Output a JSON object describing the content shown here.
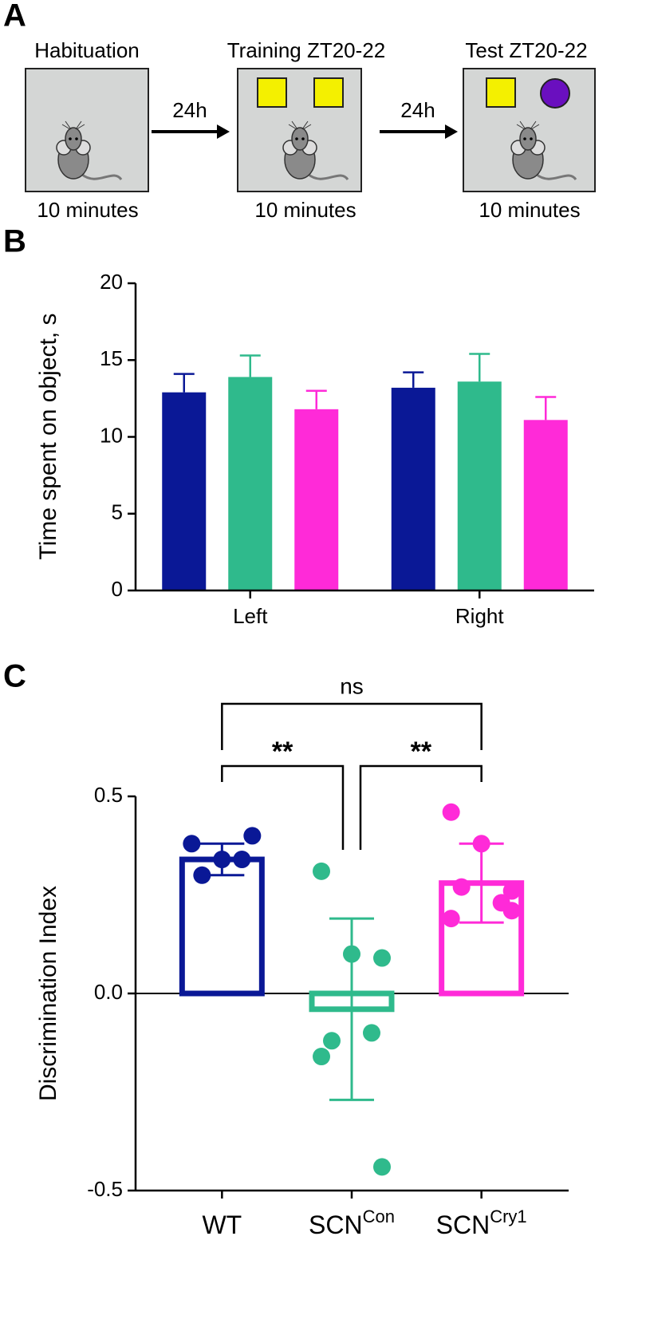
{
  "panel_a": {
    "label": "A",
    "stages": [
      {
        "title": "Habituation",
        "duration": "10 minutes"
      },
      {
        "title": "Training ZT20-22",
        "duration": "10 minutes"
      },
      {
        "title": "Test ZT20-22",
        "duration": "10 minutes"
      }
    ],
    "arrows": [
      "24h",
      "24h"
    ]
  },
  "chart_data": [
    {
      "type": "bar",
      "panel_label": "B",
      "y_label": "Time spent on object, s",
      "categories": [
        "Left",
        "Right"
      ],
      "series": [
        {
          "color": "#0a1896",
          "values": [
            12.9,
            13.2
          ],
          "errors": [
            1.2,
            1.0
          ]
        },
        {
          "color": "#2fba8c",
          "values": [
            13.9,
            13.6
          ],
          "errors": [
            1.4,
            1.8
          ]
        },
        {
          "color": "#ff2ad8",
          "values": [
            11.8,
            11.1
          ],
          "errors": [
            1.2,
            1.5
          ]
        }
      ],
      "ylim": [
        0,
        20
      ],
      "yticks": [
        0,
        5,
        10,
        15,
        20
      ]
    },
    {
      "type": "dotbar",
      "panel_label": "C",
      "y_label": "Discrimination Index",
      "categories": [
        "WT",
        "SCN",
        "SCN"
      ],
      "category_superscripts": [
        null,
        "Con",
        "Cry1"
      ],
      "colors": [
        "#0a1896",
        "#2fba8c",
        "#ff2ad8"
      ],
      "values": [
        0.34,
        -0.04,
        0.28
      ],
      "errors": [
        0.04,
        0.23,
        0.1
      ],
      "points": [
        [
          0.38,
          0.34,
          0.4,
          0.3,
          0.34
        ],
        [
          0.31,
          0.1,
          0.09,
          -0.12,
          -0.1,
          -0.16,
          -0.44
        ],
        [
          0.46,
          0.38,
          0.26,
          0.27,
          0.23,
          0.19,
          0.21
        ]
      ],
      "comparisons": [
        {
          "pair": [
            0,
            1
          ],
          "label": "**"
        },
        {
          "pair": [
            1,
            2
          ],
          "label": "**"
        },
        {
          "pair": [
            0,
            2
          ],
          "label": "ns"
        }
      ],
      "ylim": [
        -0.5,
        0.5
      ],
      "yticks": [
        -0.5,
        {
          "value": 0,
          "label": "0.0"
        },
        0.5
      ]
    }
  ]
}
